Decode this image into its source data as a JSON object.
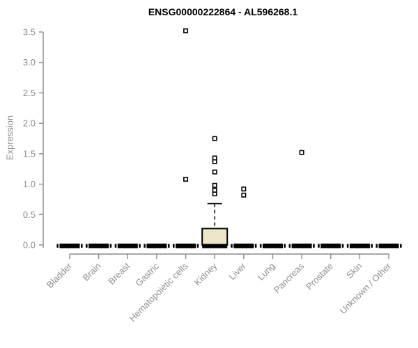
{
  "chart_data": {
    "type": "boxplot",
    "title": "ENSG00000222864 - AL596268.1",
    "xlabel": "",
    "ylabel": "Expression",
    "ylim": [
      0,
      3.5
    ],
    "yticks": [
      0.0,
      0.5,
      1.0,
      1.5,
      2.0,
      2.5,
      3.0,
      3.5
    ],
    "grid": false,
    "legend": null,
    "categories": [
      "Bladder",
      "Brain",
      "Breast",
      "Gastric",
      "Hematopoietic cells",
      "Kidney",
      "Liver",
      "Lung",
      "Pancreas",
      "Prostate",
      "Skin",
      "Unknown / Other"
    ],
    "series": [
      {
        "category": "Bladder",
        "q1": 0,
        "median": 0,
        "q3": 0,
        "whisker_low": 0,
        "whisker_high": 0,
        "outliers": []
      },
      {
        "category": "Brain",
        "q1": 0,
        "median": 0,
        "q3": 0,
        "whisker_low": 0,
        "whisker_high": 0,
        "outliers": []
      },
      {
        "category": "Breast",
        "q1": 0,
        "median": 0,
        "q3": 0,
        "whisker_low": 0,
        "whisker_high": 0,
        "outliers": []
      },
      {
        "category": "Gastric",
        "q1": 0,
        "median": 0,
        "q3": 0,
        "whisker_low": 0,
        "whisker_high": 0,
        "outliers": []
      },
      {
        "category": "Hematopoietic cells",
        "q1": 0,
        "median": 0,
        "q3": 0,
        "whisker_low": 0,
        "whisker_high": 0,
        "outliers": [
          1.08,
          3.52
        ]
      },
      {
        "category": "Kidney",
        "q1": 0,
        "median": 0,
        "q3": 0.27,
        "whisker_low": 0,
        "whisker_high": 0.68,
        "outliers": [
          0.84,
          0.9,
          0.98,
          1.2,
          1.37,
          1.43,
          1.75
        ]
      },
      {
        "category": "Liver",
        "q1": 0,
        "median": 0,
        "q3": 0,
        "whisker_low": 0,
        "whisker_high": 0,
        "outliers": [
          0.82,
          0.92
        ]
      },
      {
        "category": "Lung",
        "q1": 0,
        "median": 0,
        "q3": 0,
        "whisker_low": 0,
        "whisker_high": 0,
        "outliers": []
      },
      {
        "category": "Pancreas",
        "q1": 0,
        "median": 0,
        "q3": 0,
        "whisker_low": 0,
        "whisker_high": 0,
        "outliers": [
          1.52
        ]
      },
      {
        "category": "Prostate",
        "q1": 0,
        "median": 0,
        "q3": 0,
        "whisker_low": 0,
        "whisker_high": 0,
        "outliers": []
      },
      {
        "category": "Skin",
        "q1": 0,
        "median": 0,
        "q3": 0,
        "whisker_low": 0,
        "whisker_high": 0,
        "outliers": []
      },
      {
        "category": "Unknown / Other",
        "q1": 0,
        "median": 0,
        "q3": 0,
        "whisker_low": 0,
        "whisker_high": 0,
        "outliers": []
      }
    ],
    "colors": {
      "box_fill": "#ece6ca",
      "box_border": "#000000",
      "median": "#000000",
      "axis": "#8a8a8a",
      "tick_label": "#8e8e8e",
      "title": "#000000",
      "outlier_fill": "#ffffff",
      "background": "#ffffff"
    }
  }
}
